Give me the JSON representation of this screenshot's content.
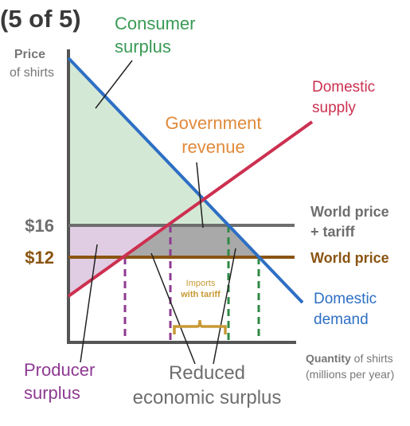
{
  "header": {
    "step": "(5 of 5)"
  },
  "axes": {
    "y_title": "Price",
    "y_subtitle": "of shirts",
    "x_title_bold": "Quantity",
    "x_title_rest": " of shirts",
    "x_subtitle": "(millions per year)"
  },
  "price_labels": {
    "high": "$16",
    "low": "$12"
  },
  "lines": {
    "world_price_tariff_1": "World price",
    "world_price_tariff_2": "+ tariff",
    "world_price": "World price",
    "domestic_supply_1": "Domestic",
    "domestic_supply_2": "supply",
    "domestic_demand_1": "Domestic",
    "domestic_demand_2": "demand"
  },
  "areas": {
    "consumer_surplus_1": "Consumer",
    "consumer_surplus_2": "surplus",
    "producer_surplus_1": "Producer",
    "producer_surplus_2": "surplus",
    "government_revenue_1": "Government",
    "government_revenue_2": "revenue",
    "reduced_surplus_1": "Reduced",
    "reduced_surplus_2": "economic surplus"
  },
  "imports": {
    "line1": "Imports",
    "line2": "with tariff"
  },
  "colors": {
    "demand": "#2e6fc4",
    "supply": "#cc3050",
    "world_price": "#8a5412",
    "world_price_tariff": "#6e6e6e",
    "consumer_fill": "#d4e8d6",
    "producer_fill": "#e1cde3",
    "revenue_fill": "#a9a9a9",
    "consumer_text": "#3a9a55",
    "producer_text": "#8e3a92",
    "revenue_text": "#e08a3a",
    "bracket": "#c79a35",
    "green_dash": "#2f8a45",
    "purple_dash": "#8e3a92",
    "axis": "#555555",
    "text_dark": "#3a3a3a",
    "gray_text": "#777777"
  }
}
